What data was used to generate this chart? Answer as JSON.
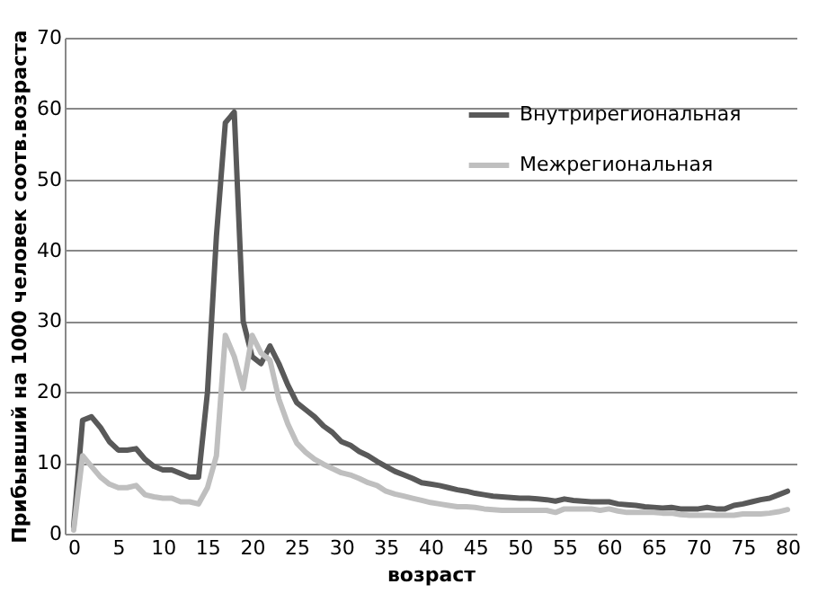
{
  "chart_data": {
    "type": "line",
    "xlabel": "возраст",
    "ylabel": "Прибывший  на 1000 человек соотв.возраста",
    "x": [
      0,
      1,
      2,
      3,
      4,
      5,
      6,
      7,
      8,
      9,
      10,
      11,
      12,
      13,
      14,
      15,
      16,
      17,
      18,
      19,
      20,
      21,
      22,
      23,
      24,
      25,
      26,
      27,
      28,
      29,
      30,
      31,
      32,
      33,
      34,
      35,
      36,
      37,
      38,
      39,
      40,
      41,
      42,
      43,
      44,
      45,
      46,
      47,
      48,
      49,
      50,
      51,
      52,
      53,
      54,
      55,
      56,
      57,
      58,
      59,
      60,
      61,
      62,
      63,
      64,
      65,
      66,
      67,
      68,
      69,
      70,
      71,
      72,
      73,
      74,
      75,
      76,
      77,
      78,
      79,
      80
    ],
    "series": [
      {
        "name": "Внутрирегиональная",
        "color": "#595959",
        "values": [
          1,
          16,
          16.5,
          15,
          13,
          11.8,
          11.8,
          12,
          10.5,
          9.5,
          9,
          9,
          8.5,
          8,
          8,
          20,
          42,
          58,
          59.5,
          30,
          25,
          24,
          26.5,
          24,
          21,
          18.5,
          17.5,
          16.5,
          15.2,
          14.3,
          13,
          12.5,
          11.6,
          11,
          10.2,
          9.5,
          8.8,
          8.3,
          7.8,
          7.2,
          7,
          6.8,
          6.5,
          6.2,
          6,
          5.7,
          5.5,
          5.3,
          5.2,
          5.1,
          5,
          5,
          4.9,
          4.8,
          4.6,
          4.9,
          4.7,
          4.6,
          4.5,
          4.5,
          4.5,
          4.2,
          4.1,
          4,
          3.8,
          3.7,
          3.6,
          3.7,
          3.5,
          3.5,
          3.5,
          3.7,
          3.5,
          3.5,
          4,
          4.2,
          4.5,
          4.8,
          5,
          5.5,
          6
        ]
      },
      {
        "name": "Межрегиональная",
        "color": "#bfbfbf",
        "values": [
          0.5,
          11,
          9.5,
          8,
          7,
          6.5,
          6.5,
          6.8,
          5.5,
          5.2,
          5,
          5,
          4.5,
          4.5,
          4.2,
          6.5,
          11,
          28,
          25,
          20.5,
          28,
          25.5,
          24.5,
          19,
          15.5,
          12.8,
          11.5,
          10.5,
          9.8,
          9.2,
          8.6,
          8.3,
          7.8,
          7.2,
          6.8,
          6,
          5.6,
          5.3,
          5,
          4.7,
          4.4,
          4.2,
          4,
          3.8,
          3.8,
          3.7,
          3.5,
          3.4,
          3.3,
          3.3,
          3.3,
          3.3,
          3.3,
          3.3,
          3,
          3.5,
          3.5,
          3.5,
          3.5,
          3.3,
          3.5,
          3.2,
          3,
          3,
          3,
          3,
          2.9,
          2.9,
          2.7,
          2.6,
          2.6,
          2.6,
          2.6,
          2.6,
          2.6,
          2.8,
          2.8,
          2.8,
          2.9,
          3.1,
          3.4
        ]
      }
    ],
    "xlim": [
      -1,
      81
    ],
    "xticks": [
      0,
      5,
      10,
      15,
      20,
      25,
      30,
      35,
      40,
      45,
      50,
      55,
      60,
      65,
      70,
      75,
      80
    ],
    "ylim": [
      0,
      70
    ],
    "yticks": [
      0,
      10,
      20,
      30,
      40,
      50,
      60,
      70
    ],
    "grid": "y",
    "legend": "top right",
    "marker": "none",
    "line_style": "solid"
  }
}
